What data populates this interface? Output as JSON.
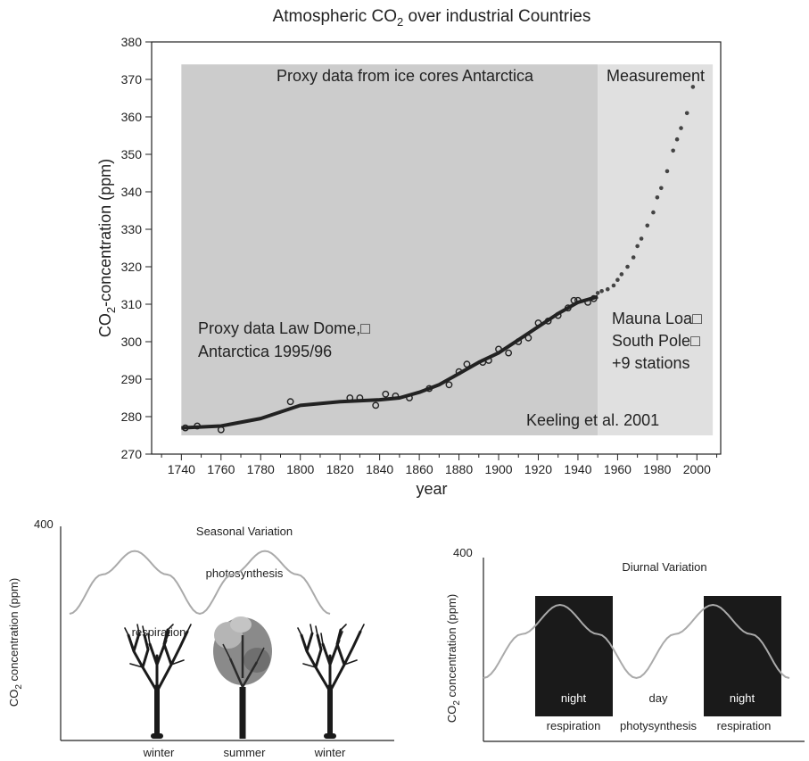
{
  "chart_data": [
    {
      "type": "scatter",
      "title": "Atmospheric CO2 over industrial Countries",
      "title_main": "Atmospheric CO",
      "title_sub": "2",
      "title_tail": " over industrial Countries",
      "xlabel": "year",
      "ylabel_pre": "CO",
      "ylabel_sub": "2",
      "ylabel_post": "-concentration (ppm)",
      "xlim": [
        1725,
        2012
      ],
      "ylim": [
        270,
        380
      ],
      "xticks": [
        1740,
        1760,
        1780,
        1800,
        1820,
        1840,
        1860,
        1880,
        1900,
        1920,
        1940,
        1960,
        1980,
        2000
      ],
      "yticks": [
        270,
        280,
        290,
        300,
        310,
        320,
        330,
        340,
        350,
        360,
        370,
        380
      ],
      "regions": [
        {
          "name": "ice-core",
          "x": [
            1740,
            1950
          ],
          "y": [
            275,
            374
          ],
          "color": "#cccccc"
        },
        {
          "name": "measurement",
          "x": [
            1950,
            2008
          ],
          "y": [
            275,
            374
          ],
          "color": "#e0e0e0"
        }
      ],
      "annotations": {
        "proxy_ice": "Proxy data from ice cores Antarctica",
        "measurement": "Measurement",
        "law_dome_1": "Proxy data Law Dome,□",
        "law_dome_2": "Antarctica 1995/96",
        "mauna_1": "Mauna Loa□",
        "mauna_2": "South Pole□",
        "mauna_3": "+9 stations",
        "keeling": "Keeling et al. 2001"
      },
      "series": [
        {
          "marker": "line",
          "x": [
            1740,
            1760,
            1780,
            1800,
            1820,
            1840,
            1850,
            1860,
            1870,
            1880,
            1890,
            1900,
            1910,
            1920,
            1930,
            1940,
            1950
          ],
          "values": [
            277,
            277.5,
            279.5,
            283,
            284,
            284.5,
            285,
            286.5,
            288.5,
            291.5,
            294.5,
            297,
            300.5,
            304,
            307.5,
            310.5,
            312
          ]
        },
        {
          "marker": "open-circle",
          "x": [
            1742,
            1748,
            1760,
            1795,
            1825,
            1830,
            1838,
            1843,
            1848,
            1855,
            1865,
            1875,
            1880,
            1884,
            1892,
            1895,
            1900,
            1905,
            1910,
            1915,
            1920,
            1925,
            1930,
            1935,
            1938,
            1940,
            1945,
            1948
          ],
          "values": [
            277,
            277.5,
            276.5,
            284,
            285,
            285,
            283,
            286,
            285.5,
            285,
            287.5,
            288.5,
            292,
            294,
            294.5,
            295,
            298,
            297,
            300,
            301,
            305,
            305.5,
            307,
            309,
            311,
            311,
            310.5,
            311.5
          ]
        },
        {
          "marker": "dot",
          "x": [
            1950,
            1952,
            1955,
            1958,
            1960,
            1962,
            1965,
            1968,
            1970,
            1972,
            1975,
            1978,
            1980,
            1982,
            1985,
            1988,
            1990,
            1992,
            1995,
            1998
          ],
          "values": [
            313,
            313.5,
            314,
            315,
            316.5,
            318,
            320,
            322.5,
            325.5,
            327.5,
            331,
            334.5,
            338.5,
            341,
            345.5,
            351,
            354,
            357,
            361,
            368
          ]
        }
      ]
    },
    {
      "type": "line",
      "title": "Seasonal Variation",
      "ylabel_pre": "CO",
      "ylabel_sub": "2",
      "ylabel_post": " concentration (ppm)",
      "ymax_label": "400",
      "labels": {
        "photosynthesis": "photosynthesis",
        "respiration": "respiration"
      },
      "categories": [
        "winter",
        "summer",
        "winter"
      ],
      "series": [
        {
          "x": [
            0,
            0.125,
            0.25,
            0.375,
            0.5,
            0.625,
            0.75,
            0.875,
            1.0
          ],
          "values": [
            0.5,
            0.75,
            0.9,
            0.75,
            0.5,
            0.75,
            0.9,
            0.75,
            0.5
          ]
        }
      ]
    },
    {
      "type": "line",
      "title": "Diurnal Variation",
      "ylabel_pre": "CO",
      "ylabel_sub": "2",
      "ylabel_post": " concentration (ppm)",
      "ymax_label": "400",
      "night_label": "night",
      "day_label": "day",
      "bottom_labels": [
        "respiration",
        "photysynthesis",
        "respiration"
      ],
      "series": [
        {
          "x": [
            0,
            0.125,
            0.25,
            0.375,
            0.5,
            0.625,
            0.75,
            0.875,
            1.0
          ],
          "values": [
            0.25,
            0.55,
            0.75,
            0.55,
            0.25,
            0.55,
            0.75,
            0.55,
            0.25
          ]
        }
      ]
    }
  ],
  "colors": {
    "line": "#222222",
    "curve_gray": "#aaaaaa",
    "night": "#1a1a1a"
  }
}
